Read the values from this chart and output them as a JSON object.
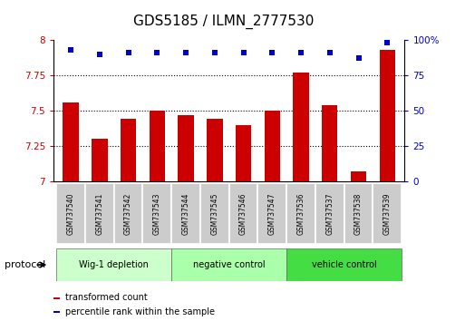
{
  "title": "GDS5185 / ILMN_2777530",
  "samples": [
    "GSM737540",
    "GSM737541",
    "GSM737542",
    "GSM737543",
    "GSM737544",
    "GSM737545",
    "GSM737546",
    "GSM737547",
    "GSM737536",
    "GSM737537",
    "GSM737538",
    "GSM737539"
  ],
  "bar_values": [
    7.56,
    7.3,
    7.44,
    7.5,
    7.47,
    7.44,
    7.4,
    7.5,
    7.77,
    7.54,
    7.07,
    7.93
  ],
  "dot_values": [
    93,
    90,
    91,
    91,
    91,
    91,
    91,
    91,
    91,
    91,
    87,
    98
  ],
  "ylim_left": [
    7.0,
    8.0
  ],
  "ylim_right": [
    0,
    100
  ],
  "yticks_left": [
    7.0,
    7.25,
    7.5,
    7.75,
    8.0
  ],
  "yticks_right": [
    0,
    25,
    50,
    75,
    100
  ],
  "ytick_labels_left": [
    "7",
    "7.25",
    "7.5",
    "7.75",
    "8"
  ],
  "ytick_labels_right": [
    "0",
    "25",
    "50",
    "75",
    "100%"
  ],
  "bar_color": "#cc0000",
  "dot_color": "#0000cc",
  "bar_bottom": 7.0,
  "grid_dotted_at": [
    7.25,
    7.5,
    7.75
  ],
  "groups": [
    {
      "label": "Wig-1 depletion",
      "start": 0,
      "end": 3,
      "color": "#ccffcc"
    },
    {
      "label": "negative control",
      "start": 4,
      "end": 7,
      "color": "#aaffaa"
    },
    {
      "label": "vehicle control",
      "start": 8,
      "end": 11,
      "color": "#44dd44"
    }
  ],
  "protocol_label": "protocol",
  "legend_bar_label": "transformed count",
  "legend_dot_label": "percentile rank within the sample",
  "tick_label_color_left": "#cc0000",
  "tick_label_color_right": "#0000cc",
  "sample_bg_color": "#cccccc",
  "title_fontsize": 11,
  "axis_fontsize": 7.5,
  "sample_fontsize": 5.5,
  "group_fontsize": 7,
  "legend_fontsize": 7
}
